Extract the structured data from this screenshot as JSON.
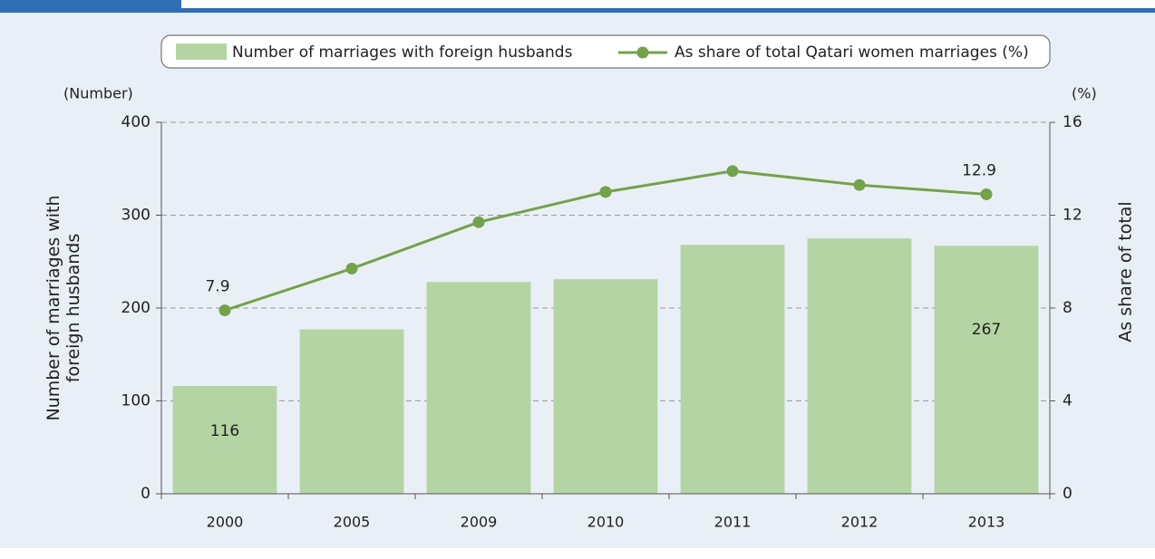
{
  "chart_data": {
    "type": "bar_line",
    "categories": [
      "2000",
      "2005",
      "2009",
      "2010",
      "2011",
      "2012",
      "2013"
    ],
    "series": [
      {
        "name": "Number of marriages with foreign husbands",
        "type": "bar",
        "color": "#b5d4a3",
        "values": [
          116,
          177,
          228,
          231,
          268,
          275,
          267
        ]
      },
      {
        "name": "As share of total Qatari women marriages (%)",
        "type": "line",
        "axis": "y2",
        "color": "#73a24a",
        "values": [
          7.9,
          9.7,
          11.7,
          13.0,
          13.9,
          13.3,
          12.9
        ]
      }
    ],
    "ylabel": [
      "Number of marriages with",
      "foreign husbands"
    ],
    "y2label": "As share of total",
    "yunit": "(Number)",
    "y2unit": "(%)",
    "ylim": [
      0,
      400
    ],
    "yticks": [
      0,
      100,
      200,
      300,
      400
    ],
    "y2lim": [
      0,
      16
    ],
    "y2ticks": [
      0,
      4,
      8,
      12,
      16
    ],
    "grid": true,
    "legend": "top"
  }
}
